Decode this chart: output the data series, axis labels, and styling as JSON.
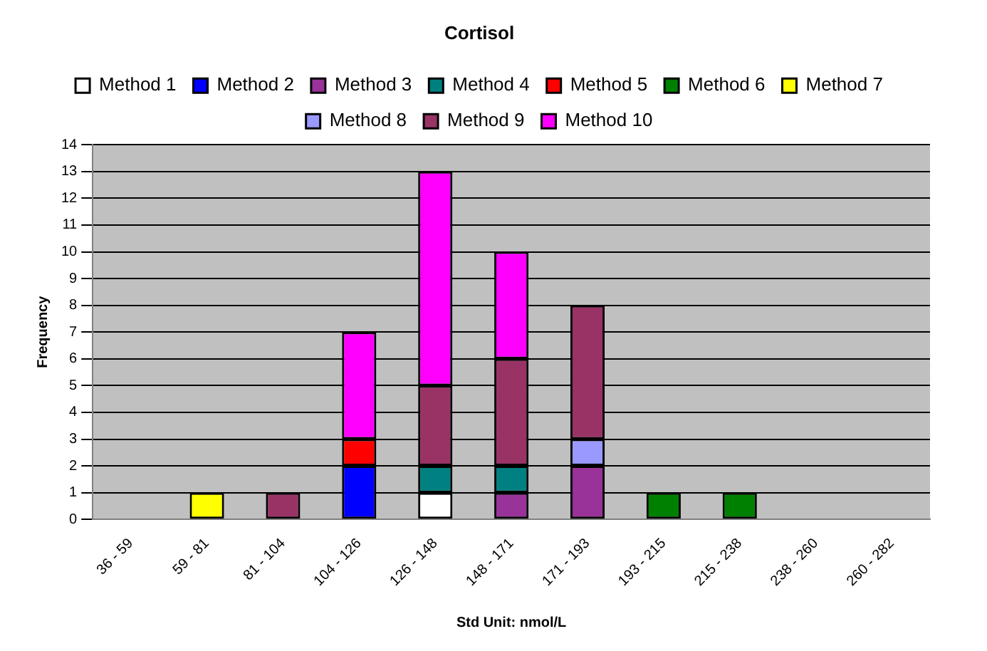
{
  "chart_data": {
    "type": "bar",
    "stacked": true,
    "title": "Cortisol",
    "xlabel": "Std Unit: nmol/L",
    "ylabel": "Frequency",
    "categories": [
      "36 - 59",
      "59 - 81",
      "81 - 104",
      "104 - 126",
      "126 - 148",
      "148 - 171",
      "171 - 193",
      "193 - 215",
      "215 - 238",
      "238 - 260",
      "260 - 282"
    ],
    "series": [
      {
        "name": "Method 1",
        "color": "#ffffff",
        "values": [
          null,
          null,
          null,
          null,
          1,
          null,
          null,
          null,
          null,
          null,
          null
        ]
      },
      {
        "name": "Method 2",
        "color": "#0000ff",
        "values": [
          null,
          null,
          null,
          2,
          null,
          null,
          null,
          null,
          null,
          null,
          null
        ]
      },
      {
        "name": "Method 3",
        "color": "#993399",
        "values": [
          null,
          null,
          null,
          null,
          null,
          1,
          2,
          null,
          null,
          null,
          null
        ]
      },
      {
        "name": "Method 4",
        "color": "#008080",
        "values": [
          null,
          null,
          null,
          null,
          1,
          1,
          null,
          null,
          null,
          null,
          null
        ]
      },
      {
        "name": "Method 5",
        "color": "#ff0000",
        "values": [
          null,
          null,
          null,
          1,
          null,
          null,
          null,
          null,
          null,
          null,
          null
        ]
      },
      {
        "name": "Method 6",
        "color": "#008000",
        "values": [
          null,
          null,
          null,
          null,
          null,
          null,
          null,
          1,
          1,
          null,
          null
        ]
      },
      {
        "name": "Method 7",
        "color": "#ffff00",
        "values": [
          null,
          1,
          null,
          null,
          null,
          null,
          null,
          null,
          null,
          null,
          null
        ]
      },
      {
        "name": "Method 8",
        "color": "#9999ff",
        "values": [
          null,
          null,
          null,
          null,
          null,
          null,
          1,
          null,
          null,
          null,
          null
        ]
      },
      {
        "name": "Method 9",
        "color": "#993366",
        "values": [
          null,
          null,
          1,
          null,
          3,
          4,
          5,
          null,
          null,
          null,
          null
        ]
      },
      {
        "name": "Method 10",
        "color": "#ff00ff",
        "values": [
          null,
          null,
          null,
          4,
          8,
          4,
          null,
          null,
          null,
          null,
          null
        ]
      }
    ],
    "ylim": [
      0,
      14
    ],
    "yticks": [
      0,
      1,
      2,
      3,
      4,
      5,
      6,
      7,
      8,
      9,
      10,
      11,
      12,
      13,
      14
    ],
    "grid": "y",
    "legend": "top"
  }
}
